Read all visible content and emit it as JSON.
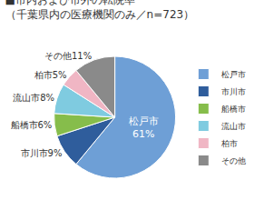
{
  "chart_data": {
    "type": "pie",
    "title": "■市内および市外の転院率",
    "subtitle": "（千葉県内の医療機関のみ／n=723）",
    "categories": [
      "松戸市",
      "市川市",
      "船橋市",
      "流山市",
      "柏市",
      "その他"
    ],
    "values": [
      61,
      9,
      6,
      8,
      5,
      11
    ],
    "value_labels": [
      "61%",
      "9%",
      "6%",
      "8%",
      "5%",
      "11%"
    ],
    "colors": [
      "#6e9fd6",
      "#2f5d9c",
      "#86bd4b",
      "#7fcbe0",
      "#f0b6c4",
      "#8a8a8a"
    ],
    "data_labels": true,
    "legend": "right"
  }
}
